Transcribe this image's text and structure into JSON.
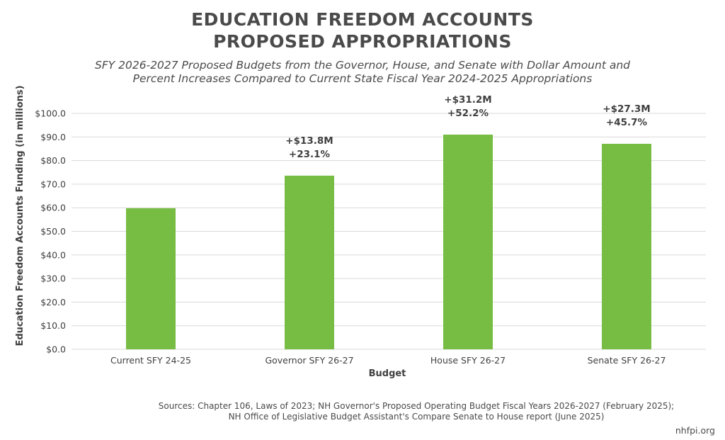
{
  "header": {
    "title_line1": "EDUCATION FREEDOM ACCOUNTS",
    "title_line2": "PROPOSED APPROPRIATIONS",
    "subtitle_line1": "SFY 2026-2027 Proposed Budgets from the Governor, House, and Senate with Dollar Amount and",
    "subtitle_line2": "Percent Increases Compared to Current State Fiscal Year 2024-2025 Appropriations"
  },
  "footer": {
    "source_line1": "Sources: Chapter 106, Laws of 2023; NH Governor's Proposed Operating Budget Fiscal Years 2026-2027 (February 2025);",
    "source_line2": "NH Office of Legislative Budget Assistant's Compare Senate to House report (June 2025)",
    "brand": "nhfpi.org"
  },
  "chart_data": {
    "type": "bar",
    "categories": [
      "Current SFY 24-25",
      "Governor SFY 26-27",
      "House SFY 26-27",
      "Senate SFY 26-27"
    ],
    "values": [
      59.8,
      73.6,
      91.0,
      87.1
    ],
    "annotations": [
      [],
      [
        "+$13.8M",
        "+23.1%"
      ],
      [
        "+$31.2M",
        "+52.2%"
      ],
      [
        "+$27.3M",
        "+45.7%"
      ]
    ],
    "xlabel": "Budget",
    "ylabel": "Education Freedom Accounts Funding (in millions)",
    "ylim": [
      0,
      100
    ],
    "yticks": [
      0,
      10,
      20,
      30,
      40,
      50,
      60,
      70,
      80,
      90,
      100
    ],
    "ytick_labels": [
      "$0.0",
      "$10.0",
      "$20.0",
      "$30.0",
      "$40.0",
      "$50.0",
      "$60.0",
      "$70.0",
      "$80.0",
      "$90.0",
      "$100.0"
    ],
    "grid": true,
    "colors": {
      "bar": "#77bc43",
      "grid": "#d9d9d9",
      "text": "#404040"
    }
  }
}
